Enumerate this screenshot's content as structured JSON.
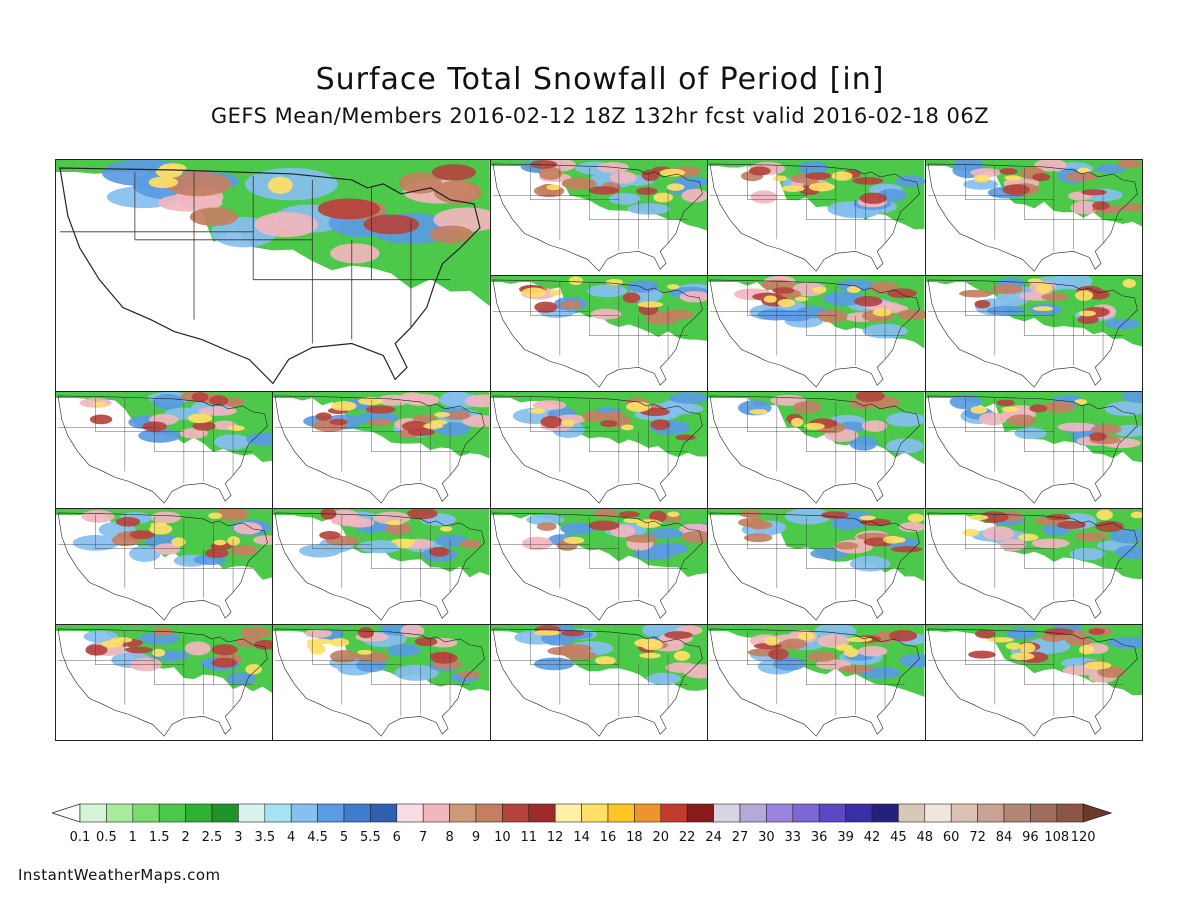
{
  "title": "Surface Total Snowfall of Period [in]",
  "subtitle": "GEFS Mean/Members 2016-02-12 18Z 132hr fcst valid 2016-02-18 06Z",
  "credit": "InstantWeatherMaps.com",
  "panels": [
    {
      "name": "mean",
      "kind": "mean"
    },
    {
      "name": "member-01"
    },
    {
      "name": "member-02"
    },
    {
      "name": "member-03"
    },
    {
      "name": "member-04"
    },
    {
      "name": "member-05"
    },
    {
      "name": "member-06"
    },
    {
      "name": "member-07"
    },
    {
      "name": "member-08"
    },
    {
      "name": "member-09"
    },
    {
      "name": "member-10"
    },
    {
      "name": "member-11"
    },
    {
      "name": "member-12"
    },
    {
      "name": "member-13"
    },
    {
      "name": "member-14"
    },
    {
      "name": "member-15"
    },
    {
      "name": "member-16"
    },
    {
      "name": "member-17"
    },
    {
      "name": "member-18"
    },
    {
      "name": "member-19"
    },
    {
      "name": "member-20"
    },
    {
      "name": "member-21"
    }
  ],
  "colorbar": {
    "labels": [
      "0.1",
      "0.5",
      "1",
      "1.5",
      "2",
      "2.5",
      "3",
      "3.5",
      "4",
      "4.5",
      "5",
      "5.5",
      "6",
      "7",
      "8",
      "9",
      "10",
      "11",
      "12",
      "14",
      "16",
      "18",
      "20",
      "22",
      "24",
      "27",
      "30",
      "33",
      "36",
      "39",
      "42",
      "45",
      "48",
      "60",
      "72",
      "84",
      "96",
      "108",
      "120"
    ],
    "colors": [
      "#d6f5d6",
      "#a9ea9f",
      "#7cdb6e",
      "#4cc94a",
      "#2eb231",
      "#1f9428",
      "#d9f4f0",
      "#a8e2f5",
      "#86bff0",
      "#5a9be3",
      "#3f7bd0",
      "#2e5fb3",
      "#f7dde3",
      "#f2b6bf",
      "#cf9a78",
      "#c47f62",
      "#b5433d",
      "#9e2b2b",
      "#fff2a8",
      "#ffe066",
      "#ffc426",
      "#f0922d",
      "#c43a2f",
      "#8b1a1a",
      "#d9d3e6",
      "#b6a9d9",
      "#9b84e0",
      "#7e66d6",
      "#5c48c6",
      "#3b2fa8",
      "#24207e",
      "#d8c8b8",
      "#f0e6dc",
      "#dcc2b4",
      "#c9a293",
      "#b48676",
      "#9f6d5c",
      "#8c5646"
    ],
    "under_color": "#ffffff",
    "over_color": "#6b3a2a"
  }
}
